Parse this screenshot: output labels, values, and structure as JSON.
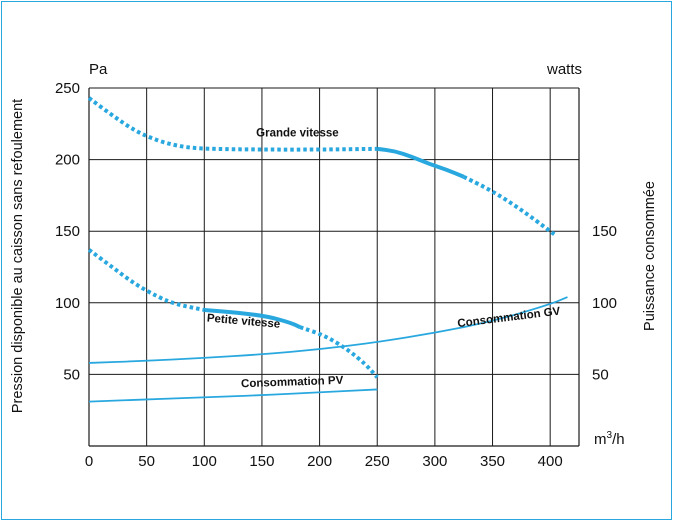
{
  "chart_data": {
    "type": "line",
    "title": "",
    "x": [
      0,
      50,
      100,
      150,
      200,
      250,
      300,
      350,
      400
    ],
    "xlim": [
      0,
      425
    ],
    "x_unit": "m3/h",
    "xlabel_main": "m",
    "xlabel_sup": "3",
    "xlabel_tail": "/h",
    "ylim_left": [
      0,
      250
    ],
    "ylim_right": [
      0,
      250
    ],
    "y_ticks_left": [
      50,
      100,
      150,
      200,
      250
    ],
    "y_ticks_right": [
      50,
      100,
      150
    ],
    "x_ticks": [
      0,
      50,
      100,
      150,
      200,
      250,
      300,
      350,
      400
    ],
    "y_unit_left": "Pa",
    "y_unit_right": "watts",
    "ylabel_left": "Pression disponible au caisson sans refoulement",
    "ylabel_right": "Puissance consommée",
    "grid": true,
    "colors": {
      "curve": "#29a8df",
      "grid": "#1a1a1a",
      "frame": "#29a8df"
    },
    "series": [
      {
        "name": "Grande vitesse",
        "segments": [
          {
            "style": "dotted",
            "points": [
              [
                0,
                243
              ],
              [
                20,
                231
              ],
              [
                40,
                220
              ],
              [
                60,
                213
              ],
              [
                80,
                209
              ],
              [
                100,
                207.5
              ],
              [
                150,
                207
              ],
              [
                200,
                207
              ],
              [
                250,
                207.5
              ]
            ]
          },
          {
            "style": "solid",
            "points": [
              [
                250,
                207.5
              ],
              [
                265,
                206
              ],
              [
                280,
                202
              ],
              [
                295,
                197
              ],
              [
                310,
                193
              ],
              [
                325,
                188
              ]
            ]
          },
          {
            "style": "dotted",
            "points": [
              [
                325,
                188
              ],
              [
                350,
                178
              ],
              [
                375,
                165
              ],
              [
                400,
                150
              ],
              [
                405,
                147
              ]
            ]
          }
        ]
      },
      {
        "name": "Petite vitesse",
        "segments": [
          {
            "style": "dotted",
            "points": [
              [
                0,
                137
              ],
              [
                20,
                125
              ],
              [
                40,
                113
              ],
              [
                60,
                104
              ],
              [
                75,
                99
              ],
              [
                100,
                95
              ]
            ]
          },
          {
            "style": "solid",
            "points": [
              [
                100,
                95
              ],
              [
                130,
                93
              ],
              [
                155,
                90.5
              ],
              [
                175,
                86
              ],
              [
                183,
                83
              ]
            ]
          },
          {
            "style": "dotted",
            "points": [
              [
                183,
                83
              ],
              [
                205,
                77
              ],
              [
                225,
                67
              ],
              [
                240,
                57
              ],
              [
                250,
                48
              ]
            ]
          }
        ]
      },
      {
        "name": "Consommation GV",
        "segments": [
          {
            "style": "solid",
            "points": [
              [
                0,
                58
              ],
              [
                50,
                59.5
              ],
              [
                100,
                61.5
              ],
              [
                150,
                64
              ],
              [
                200,
                67.5
              ],
              [
                250,
                72.5
              ],
              [
                300,
                79
              ],
              [
                350,
                87
              ],
              [
                400,
                99
              ],
              [
                415,
                104
              ]
            ]
          }
        ]
      },
      {
        "name": "Consommation PV",
        "segments": [
          {
            "style": "solid",
            "points": [
              [
                0,
                31
              ],
              [
                50,
                32.5
              ],
              [
                100,
                34
              ],
              [
                150,
                35.5
              ],
              [
                200,
                37.5
              ],
              [
                250,
                39.5
              ]
            ]
          }
        ]
      }
    ],
    "annotations": [
      {
        "text": "Grande vitesse",
        "x": 145,
        "y": 216,
        "rotate": 0
      },
      {
        "text": "Petite vitesse",
        "x": 102,
        "y": 87,
        "rotate": 5
      },
      {
        "text": "Consommation GV",
        "x": 320,
        "y": 83,
        "rotate": -7
      },
      {
        "text": "Consommation PV",
        "x": 132,
        "y": 41,
        "rotate": -2
      }
    ]
  }
}
